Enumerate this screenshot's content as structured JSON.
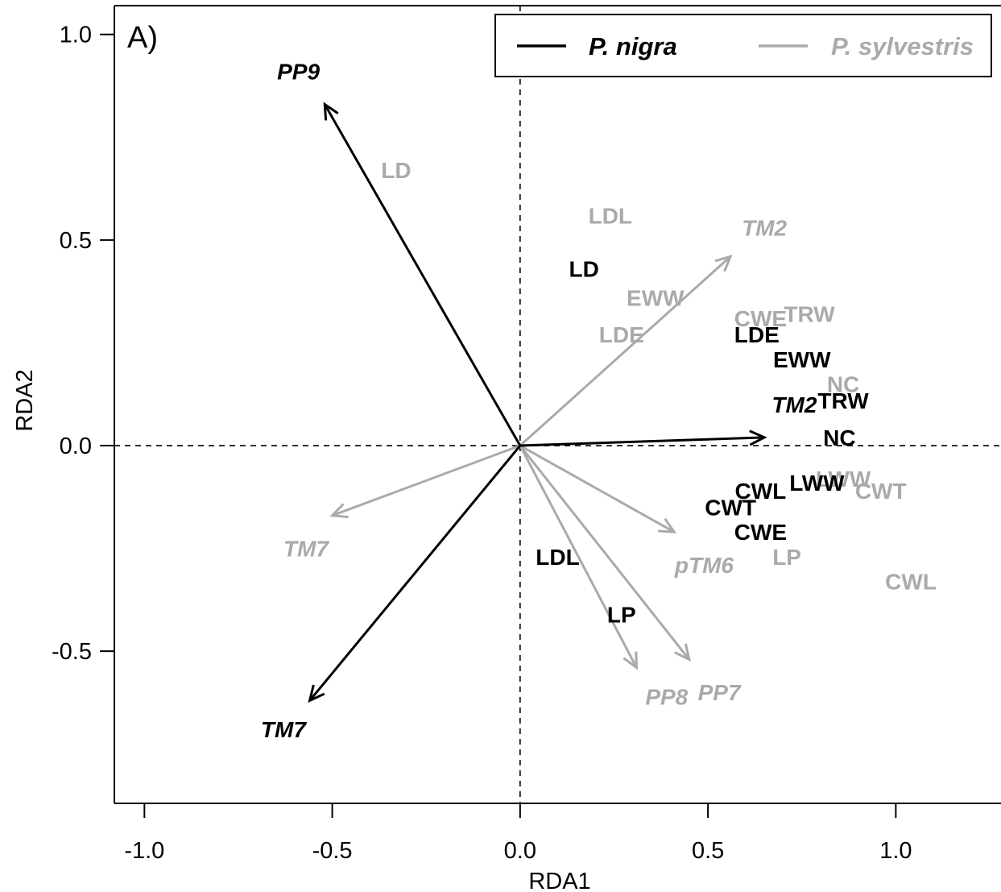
{
  "chart_data": {
    "type": "scatter",
    "panel_label": "A)",
    "xlabel": "RDA1",
    "ylabel": "RDA2",
    "xlim": [
      -1.08,
      1.28
    ],
    "ylim": [
      -0.87,
      1.07
    ],
    "x_ticks": [
      -1.0,
      -0.5,
      0.0,
      0.5,
      1.0
    ],
    "x_tick_labels": [
      "-1.0",
      "-0.5",
      "0.0",
      "0.5",
      "1.0"
    ],
    "y_ticks": [
      -0.5,
      0.0,
      0.5,
      1.0
    ],
    "y_tick_labels": [
      "-0.5",
      "0.0",
      "0.5",
      "1.0"
    ],
    "reference_lines": {
      "x": 0,
      "y": 0,
      "style": "dashed"
    },
    "legend": {
      "position": "top-right",
      "entries": [
        {
          "label": "P. nigra",
          "color": "#000000"
        },
        {
          "label": "P. sylvestris",
          "color": "#aaaaaa"
        }
      ]
    },
    "colors": {
      "P. nigra": "#000000",
      "P. sylvestris": "#aaaaaa"
    },
    "series": [
      {
        "name": "P. nigra",
        "color": "#000000",
        "arrows": [
          {
            "label": "PP9",
            "x": -0.52,
            "y": 0.83,
            "label_x": -0.59,
            "label_y": 0.91
          },
          {
            "label": "TM7",
            "x": -0.56,
            "y": -0.62,
            "label_x": -0.63,
            "label_y": -0.69
          },
          {
            "label": "TM2",
            "x": 0.65,
            "y": 0.02,
            "label_x": 0.73,
            "label_y": 0.1
          }
        ],
        "points": [
          {
            "label": "LD",
            "x": 0.17,
            "y": 0.43
          },
          {
            "label": "LDE",
            "x": 0.63,
            "y": 0.27
          },
          {
            "label": "EWW",
            "x": 0.75,
            "y": 0.21
          },
          {
            "label": "TRW",
            "x": 0.86,
            "y": 0.11
          },
          {
            "label": "NC",
            "x": 0.85,
            "y": 0.02
          },
          {
            "label": "LWW",
            "x": 0.79,
            "y": -0.09
          },
          {
            "label": "CWL",
            "x": 0.64,
            "y": -0.11
          },
          {
            "label": "CWT",
            "x": 0.56,
            "y": -0.15
          },
          {
            "label": "CWE",
            "x": 0.64,
            "y": -0.21
          },
          {
            "label": "LDL",
            "x": 0.1,
            "y": -0.27
          },
          {
            "label": "LP",
            "x": 0.27,
            "y": -0.41
          }
        ]
      },
      {
        "name": "P. sylvestris",
        "color": "#aaaaaa",
        "arrows": [
          {
            "label": "TM2",
            "x": 0.56,
            "y": 0.46,
            "label_x": 0.65,
            "label_y": 0.53
          },
          {
            "label": "TM7",
            "x": -0.5,
            "y": -0.17,
            "label_x": -0.57,
            "label_y": -0.25
          },
          {
            "label": "pTM6",
            "x": 0.41,
            "y": -0.21,
            "label_x": 0.49,
            "label_y": -0.29
          },
          {
            "label": "PP7",
            "x": 0.45,
            "y": -0.52,
            "label_x": 0.53,
            "label_y": -0.6
          },
          {
            "label": "PP8",
            "x": 0.31,
            "y": -0.54,
            "label_x": 0.39,
            "label_y": -0.61
          }
        ],
        "points": [
          {
            "label": "LD",
            "x": -0.33,
            "y": 0.67
          },
          {
            "label": "LDL",
            "x": 0.24,
            "y": 0.56
          },
          {
            "label": "EWW",
            "x": 0.36,
            "y": 0.36
          },
          {
            "label": "LDE",
            "x": 0.27,
            "y": 0.27
          },
          {
            "label": "CWE",
            "x": 0.64,
            "y": 0.31
          },
          {
            "label": "TRW",
            "x": 0.77,
            "y": 0.32
          },
          {
            "label": "NC",
            "x": 0.86,
            "y": 0.15
          },
          {
            "label": "LWW",
            "x": 0.86,
            "y": -0.08
          },
          {
            "label": "CWT",
            "x": 0.96,
            "y": -0.11
          },
          {
            "label": "LP",
            "x": 0.71,
            "y": -0.27
          },
          {
            "label": "CWL",
            "x": 1.04,
            "y": -0.33
          }
        ]
      }
    ]
  }
}
